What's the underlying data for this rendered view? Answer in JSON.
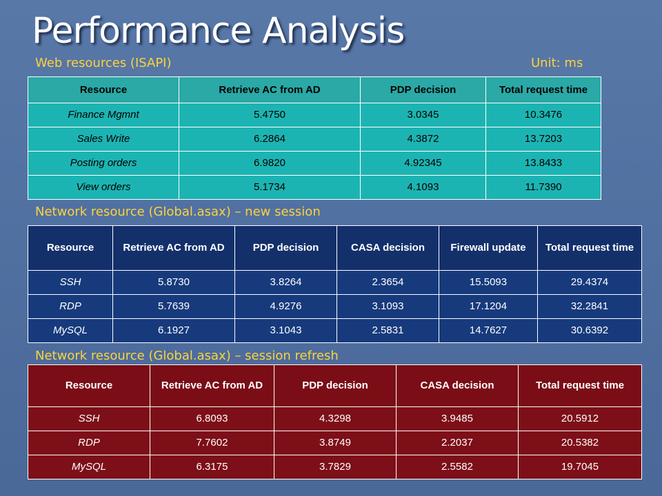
{
  "slide": {
    "title": "Performance Analysis",
    "subhead_web": "Web resources (ISAPI)",
    "unit": "Unit: ms",
    "subhead_net_new": "Network resource (Global.asax) – new session",
    "subhead_net_refresh": "Network resource (Global.asax) – session refresh"
  },
  "web_table": {
    "headers": [
      "Resource",
      "Retrieve AC from AD",
      "PDP decision",
      "Total request time"
    ],
    "rows": [
      [
        "Finance Mgmnt",
        "5.4750",
        "3.0345",
        "10.3476"
      ],
      [
        "Sales Write",
        "6.2864",
        "4.3872",
        "13.7203"
      ],
      [
        "Posting orders",
        "6.9820",
        "4.92345",
        "13.8433"
      ],
      [
        "View orders",
        "5.1734",
        "4.1093",
        "11.7390"
      ]
    ]
  },
  "new_session_table": {
    "headers": [
      "Resource",
      "Retrieve AC from AD",
      "PDP decision",
      "CASA decision",
      "Firewall update",
      "Total request time"
    ],
    "rows": [
      [
        "SSH",
        "5.8730",
        "3.8264",
        "2.3654",
        "15.5093",
        "29.4374"
      ],
      [
        "RDP",
        "5.7639",
        "4.9276",
        "3.1093",
        "17.1204",
        "32.2841"
      ],
      [
        "MySQL",
        "6.1927",
        "3.1043",
        "2.5831",
        "14.7627",
        "30.6392"
      ]
    ]
  },
  "refresh_table": {
    "headers": [
      "Resource",
      "Retrieve AC from AD",
      "PDP decision",
      "CASA decision",
      "Total request time"
    ],
    "rows": [
      [
        "SSH",
        "6.8093",
        "4.3298",
        "3.9485",
        "20.5912"
      ],
      [
        "RDP",
        "7.7602",
        "3.8749",
        "2.2037",
        "20.5382"
      ],
      [
        "MySQL",
        "6.3175",
        "3.7829",
        "2.5582",
        "19.7045"
      ]
    ]
  },
  "colors": {
    "background": "#4f6fa0",
    "title": "#ffffff",
    "subhead": "#ffd23a",
    "web_table": "#1cb4b2",
    "new_session_table": "#173a7c",
    "refresh_table": "#7d0f18"
  }
}
